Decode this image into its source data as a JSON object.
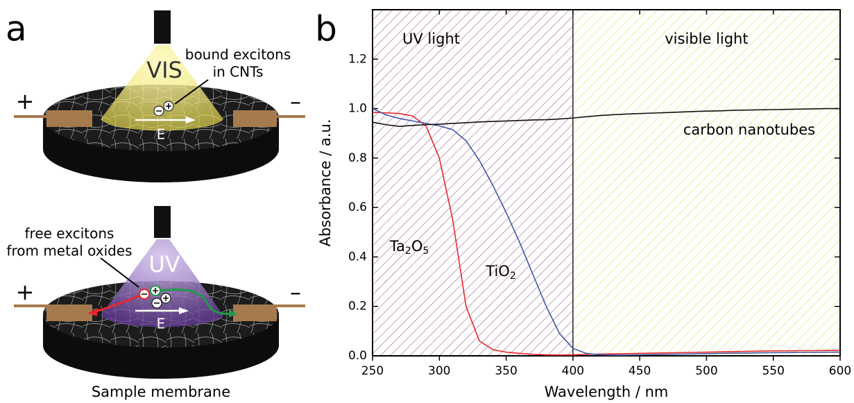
{
  "panel_a": {
    "label": "a",
    "top": {
      "light": "VIS",
      "note": [
        "bound excitons",
        "in CNTs"
      ],
      "plus": "+",
      "minus": "–",
      "field": "E"
    },
    "bottom": {
      "light": "UV",
      "note": [
        "free excitons",
        "from metal oxides"
      ],
      "plus": "+",
      "minus": "–",
      "field": "E"
    },
    "caption": "Sample membrane"
  },
  "chart_data": {
    "type": "line",
    "panel_label": "b",
    "x_label": "Wavelength / nm",
    "y_label": "Absorbance / a.u.",
    "xlim": [
      250,
      600
    ],
    "xticks": [
      250,
      300,
      350,
      400,
      450,
      500,
      550,
      600
    ],
    "ylim": [
      0,
      1.4
    ],
    "yticks": [
      {
        "value": 0,
        "label": "0.0"
      },
      0.2,
      0.4,
      0.6,
      0.8,
      {
        "value": 1,
        "label": "1.0"
      },
      1.2
    ],
    "regions": [
      {
        "label": "UV light",
        "range": [
          250,
          400
        ],
        "color": "#a86c98"
      },
      {
        "label": "visible light",
        "range": [
          400,
          600
        ],
        "color": "#e2e070"
      }
    ],
    "x": [
      250,
      260,
      270,
      280,
      290,
      300,
      310,
      320,
      330,
      340,
      350,
      360,
      370,
      380,
      390,
      400,
      410,
      420,
      430,
      440,
      450,
      460,
      470,
      480,
      490,
      500,
      510,
      520,
      530,
      540,
      550,
      560,
      570,
      580,
      590,
      600
    ],
    "series": [
      {
        "name": "Ta2O5",
        "color": "#e8262a",
        "values": [
          0.985,
          0.983,
          0.98,
          0.97,
          0.93,
          0.8,
          0.55,
          0.2,
          0.06,
          0.025,
          0.015,
          0.01,
          0.006,
          0.004,
          0.003,
          0.004,
          0.006,
          0.007,
          0.008,
          0.009,
          0.01,
          0.011,
          0.012,
          0.013,
          0.014,
          0.015,
          0.016,
          0.017,
          0.018,
          0.019,
          0.02,
          0.02,
          0.021,
          0.021,
          0.022,
          0.022
        ]
      },
      {
        "name": "TiO2",
        "color": "#3e58a6",
        "values": [
          1.0,
          0.975,
          0.96,
          0.95,
          0.94,
          0.93,
          0.915,
          0.87,
          0.79,
          0.69,
          0.58,
          0.46,
          0.33,
          0.2,
          0.09,
          0.03,
          0.01,
          0.004,
          0.003,
          0.003,
          0.004,
          0.005,
          0.006,
          0.007,
          0.008,
          0.009,
          0.01,
          0.011,
          0.011,
          0.012,
          0.013,
          0.013,
          0.014,
          0.014,
          0.015,
          0.015
        ]
      },
      {
        "name": "carbon nanotubes",
        "color": "#111111",
        "values": [
          0.945,
          0.935,
          0.928,
          0.932,
          0.935,
          0.937,
          0.94,
          0.943,
          0.946,
          0.948,
          0.95,
          0.952,
          0.954,
          0.955,
          0.958,
          0.962,
          0.967,
          0.972,
          0.975,
          0.978,
          0.98,
          0.982,
          0.984,
          0.986,
          0.988,
          0.99,
          0.991,
          0.993,
          0.994,
          0.995,
          0.996,
          0.997,
          0.998,
          0.999,
          1.0,
          1.0
        ]
      }
    ]
  }
}
